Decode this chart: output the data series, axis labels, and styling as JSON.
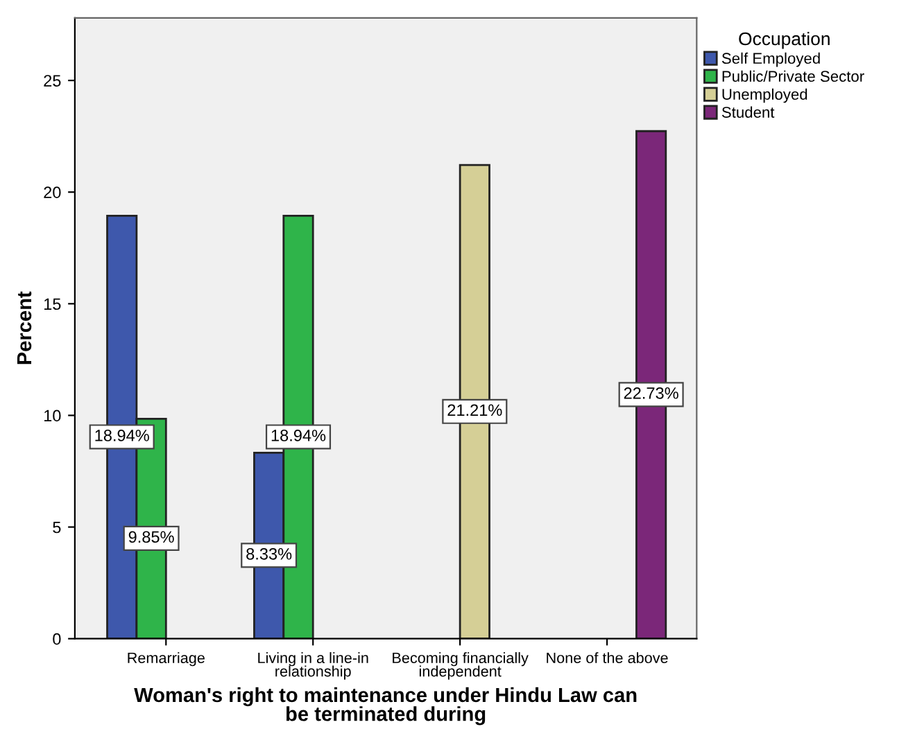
{
  "chart_data": {
    "type": "bar",
    "xlabel": "Woman's right to maintenance under Hindu Law can\nbe terminated during",
    "ylabel": "Percent",
    "legend_title": "Occupation",
    "categories": [
      "Remarriage",
      "Living in a line-in\nrelationship",
      "Becoming financially\nindependent",
      "None of the above"
    ],
    "series": [
      {
        "name": "Self Employed",
        "color": "#3e58ac",
        "values": [
          18.94,
          8.33,
          null,
          null
        ],
        "value_labels": [
          "18.94%",
          "8.33%",
          null,
          null
        ]
      },
      {
        "name": "Public/Private Sector",
        "color": "#2fb44a",
        "values": [
          9.85,
          18.94,
          null,
          null
        ],
        "value_labels": [
          "9.85%",
          "18.94%",
          null,
          null
        ]
      },
      {
        "name": "Unemployed",
        "color": "#d5cf96",
        "values": [
          null,
          null,
          21.21,
          null
        ],
        "value_labels": [
          null,
          null,
          "21.21%",
          null
        ]
      },
      {
        "name": "Student",
        "color": "#7b2779",
        "values": [
          null,
          null,
          null,
          22.73
        ],
        "value_labels": [
          null,
          null,
          null,
          "22.73%"
        ]
      }
    ],
    "ylim": [
      0,
      27.8
    ],
    "yticks": [
      0,
      5,
      10,
      15,
      20,
      25
    ],
    "grid": false,
    "legend": "top right"
  }
}
